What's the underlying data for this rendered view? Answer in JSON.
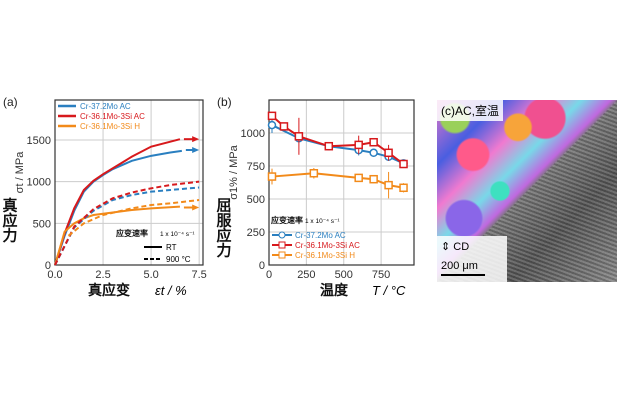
{
  "chart_data": [
    {
      "type": "line",
      "panel_label": "(a)",
      "ylabel": "σt / MPa",
      "ylabel_cn": "真应力",
      "xlabel_cn": "真应变",
      "xlabel": "εt / %",
      "xlim": [
        0,
        7.7
      ],
      "ylim": [
        0,
        1980
      ],
      "xticks": [
        0,
        2.5,
        5,
        7.5
      ],
      "xtick_labels": [
        "0.0",
        "2.5",
        "5.0",
        "7.5"
      ],
      "yticks": [
        0,
        500,
        1000,
        1500
      ],
      "ytick_labels": [
        "0",
        "500",
        "1000",
        "1500"
      ],
      "grid": true,
      "legend": [
        "Cr-37.2Mo AC",
        "Cr-36.1Mo-3Si AC",
        "Cr-36.1Mo-3Si H"
      ],
      "legend_position": "top-left",
      "strain_rate_label": "应变速率",
      "strain_rate_value": "1 x 10⁻⁴ s⁻¹",
      "style_legend": [
        "RT",
        "900 °C"
      ],
      "series": [
        {
          "name": "Cr-37.2Mo AC",
          "condition": "RT",
          "color": "#2a7fc0",
          "dash": false,
          "x": [
            0,
            0.5,
            1,
            1.5,
            2,
            2.5,
            3,
            4,
            5,
            6,
            6.6
          ],
          "y": [
            0,
            350,
            650,
            880,
            1000,
            1080,
            1150,
            1250,
            1310,
            1350,
            1370
          ],
          "arrow_to": [
            7.5,
            1380
          ]
        },
        {
          "name": "Cr-36.1Mo-3Si AC",
          "condition": "RT",
          "color": "#d7191c",
          "dash": false,
          "x": [
            0,
            0.5,
            1,
            1.5,
            2,
            2.5,
            3,
            4,
            5,
            6,
            6.5
          ],
          "y": [
            0,
            380,
            680,
            900,
            1010,
            1090,
            1160,
            1300,
            1420,
            1480,
            1510
          ],
          "arrow_to": [
            7.5,
            1510
          ]
        },
        {
          "name": "Cr-36.1Mo-3Si H",
          "condition": "RT",
          "color": "#f28a1a",
          "dash": false,
          "x": [
            0,
            0.5,
            1,
            1.5,
            2,
            3,
            4,
            5,
            6.5
          ],
          "y": [
            0,
            400,
            500,
            560,
            600,
            630,
            660,
            680,
            700
          ],
          "arrow_to": [
            7.5,
            690
          ]
        },
        {
          "name": "Cr-37.2Mo AC",
          "condition": "900 °C",
          "color": "#2a7fc0",
          "dash": true,
          "x": [
            0,
            1,
            2,
            3,
            4,
            5,
            6,
            7.5
          ],
          "y": [
            0,
            450,
            650,
            780,
            840,
            880,
            900,
            930
          ]
        },
        {
          "name": "Cr-36.1Mo-3Si AC",
          "condition": "900 °C",
          "color": "#d7191c",
          "dash": true,
          "x": [
            0,
            1,
            2,
            3,
            4,
            5,
            6,
            7.5
          ],
          "y": [
            0,
            460,
            670,
            800,
            870,
            920,
            960,
            1000
          ]
        },
        {
          "name": "Cr-36.1Mo-3Si H",
          "condition": "900 °C",
          "color": "#f28a1a",
          "dash": true,
          "x": [
            0.7,
            1.5,
            2.5,
            4,
            5,
            6,
            7.5
          ],
          "y": [
            350,
            500,
            600,
            680,
            720,
            740,
            780
          ]
        }
      ]
    },
    {
      "type": "line",
      "panel_label": "(b)",
      "ylabel": "σ1% / MPa",
      "ylabel_cn": "屈服应力",
      "xlabel_cn": "温度",
      "xlabel": "T / °C",
      "xlim": [
        0,
        970
      ],
      "ylim": [
        0,
        1250
      ],
      "xticks": [
        0,
        250,
        500,
        750
      ],
      "xtick_labels": [
        "0",
        "250",
        "500",
        "750"
      ],
      "yticks": [
        0,
        250,
        500,
        750,
        1000
      ],
      "ytick_labels": [
        "0",
        "250",
        "500",
        "750",
        "1000"
      ],
      "grid": true,
      "strain_rate_label": "应变速率",
      "strain_rate_value": "1 x 10⁻⁴ s⁻¹",
      "legend_position": "bottom-left",
      "series": [
        {
          "name": "Cr-37.2Mo AC",
          "color": "#2a7fc0",
          "marker": "circle",
          "x": [
            20,
            200,
            400,
            600,
            700,
            800,
            900
          ],
          "y": [
            1060,
            960,
            900,
            870,
            850,
            820,
            770
          ],
          "err": [
            60,
            0,
            20,
            40,
            15,
            20,
            15
          ]
        },
        {
          "name": "Cr-36.1Mo-3Si AC",
          "color": "#d7191c",
          "marker": "square",
          "x": [
            20,
            100,
            200,
            400,
            600,
            700,
            800,
            900
          ],
          "y": [
            1130,
            1050,
            975,
            900,
            910,
            930,
            850,
            765
          ],
          "err": [
            20,
            15,
            140,
            20,
            70,
            20,
            60,
            15
          ]
        },
        {
          "name": "Cr-36.1Mo-3Si H",
          "color": "#f28a1a",
          "marker": "square",
          "x": [
            20,
            300,
            600,
            700,
            800,
            900
          ],
          "y": [
            670,
            695,
            660,
            650,
            605,
            585
          ],
          "err": [
            60,
            40,
            15,
            30,
            100,
            35
          ]
        }
      ]
    }
  ],
  "micrograph": {
    "panel_label": "(c)",
    "caption": "AC,室温",
    "direction_label": "CD",
    "scale_bar": "200 μm"
  }
}
